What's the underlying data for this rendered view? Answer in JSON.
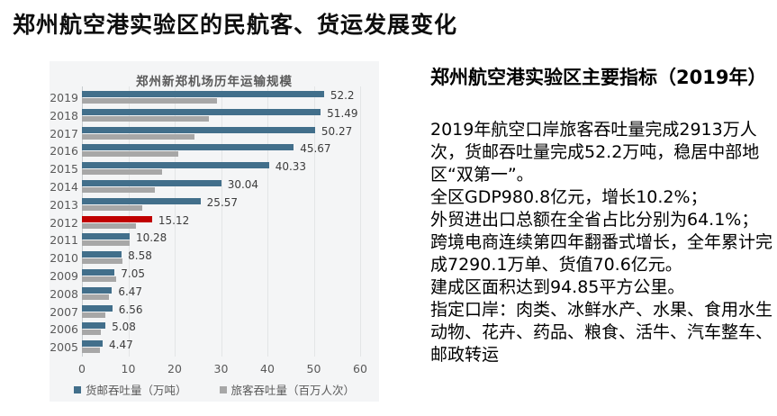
{
  "page": {
    "title": "郑州航空港实验区的民航客、货运发展变化"
  },
  "chart_data": {
    "type": "bar",
    "orientation": "horizontal",
    "title": "郑州新郑机场历年运输规模",
    "categories": [
      "2019",
      "2018",
      "2017",
      "2016",
      "2015",
      "2014",
      "2013",
      "2012",
      "2011",
      "2010",
      "2009",
      "2008",
      "2007",
      "2006",
      "2005"
    ],
    "series": [
      {
        "name": "货邮吞吐量（万吨）",
        "color": "#426f8b",
        "values": [
          52.2,
          51.49,
          50.27,
          45.67,
          40.33,
          30.04,
          25.57,
          15.12,
          10.28,
          8.58,
          7.05,
          6.47,
          6.56,
          5.08,
          4.47
        ],
        "labels": [
          "52.2",
          "51.49",
          "50.27",
          "45.67",
          "40.33",
          "30.04",
          "25.57",
          "15.12",
          "10.28",
          "8.58",
          "7.05",
          "6.47",
          "6.56",
          "5.08",
          "4.47"
        ]
      },
      {
        "name": "旅客吞吐量（百万人次）",
        "color": "#a7a7a7",
        "values": [
          29.1,
          27.3,
          24.3,
          20.8,
          17.3,
          15.8,
          13.1,
          11.7,
          10.2,
          8.7,
          7.3,
          5.9,
          5.1,
          4.1,
          3.9
        ]
      }
    ],
    "highlight": {
      "category": "2012",
      "series_index": 0,
      "color": "#c00000"
    },
    "xlim": [
      0,
      60
    ],
    "x_ticks": [
      0,
      10,
      20,
      30,
      40,
      50,
      60
    ],
    "grid": "vertical",
    "legend_position": "bottom",
    "panel_background": "#f4f5f6"
  },
  "info_panel": {
    "title": "郑州航空港实验区主要指标（2019年）",
    "paragraphs": [
      "2019年航空口岸旅客吞吐量完成2913万人次，货邮吞吐量完成52.2万吨，稳居中部地区“双第一”。",
      "全区GDP980.8亿元，增长10.2%；",
      "外贸进出口总额在全省占比分别为64.1%；",
      "跨境电商连续第四年翻番式增长，全年累计完成7290.1万单、货值70.6亿元。",
      "建成区面积达到94.85平方公里。",
      "指定口岸：肉类、冰鲜水产、水果、食用水生动物、花卉、药品、粮食、活牛、汽车整车、邮政转运"
    ]
  }
}
